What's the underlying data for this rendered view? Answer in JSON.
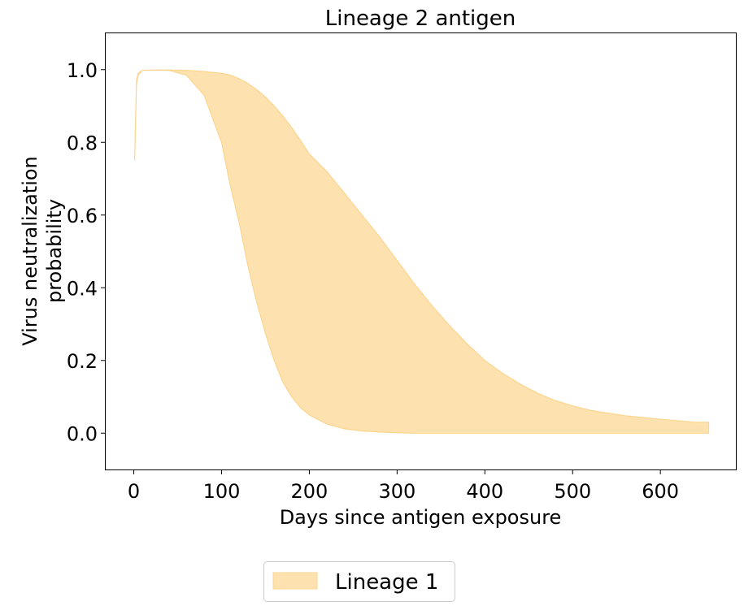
{
  "chart_data": {
    "type": "area",
    "title": "Lineage 2 antigen",
    "xlabel": "Days since antigen exposure",
    "ylabel_lines": [
      "Virus neutralization",
      "probability"
    ],
    "xlim": [
      -32,
      686
    ],
    "ylim": [
      -0.1,
      1.1
    ],
    "xticks": [
      0,
      100,
      200,
      300,
      400,
      500,
      600
    ],
    "xtick_labels": [
      "0",
      "100",
      "200",
      "300",
      "400",
      "500",
      "600"
    ],
    "yticks": [
      0.0,
      0.2,
      0.4,
      0.6,
      0.8,
      1.0
    ],
    "ytick_labels": [
      "0.0",
      "0.2",
      "0.4",
      "0.6",
      "0.8",
      "1.0"
    ],
    "grid": false,
    "legend_position": "bottom-center-outside",
    "series": [
      {
        "name": "Lineage 1",
        "color": "#fde2b0",
        "edge_color": "#fcd58f",
        "x": [
          1,
          3,
          5,
          10,
          20,
          40,
          60,
          80,
          100,
          110,
          120,
          130,
          140,
          150,
          160,
          170,
          180,
          190,
          200,
          220,
          240,
          260,
          280,
          300,
          320,
          340,
          360,
          380,
          400,
          420,
          440,
          460,
          480,
          500,
          520,
          540,
          560,
          580,
          600,
          620,
          640,
          655
        ],
        "upper": [
          0.75,
          0.97,
          0.99,
          0.998,
          0.999,
          0.999,
          0.998,
          0.995,
          0.99,
          0.985,
          0.975,
          0.962,
          0.945,
          0.925,
          0.9,
          0.872,
          0.84,
          0.805,
          0.768,
          0.72,
          0.66,
          0.6,
          0.54,
          0.475,
          0.41,
          0.35,
          0.295,
          0.245,
          0.2,
          0.165,
          0.135,
          0.11,
          0.09,
          0.075,
          0.063,
          0.055,
          0.048,
          0.043,
          0.038,
          0.034,
          0.03,
          0.03
        ],
        "lower": [
          0.75,
          0.96,
          0.985,
          0.998,
          0.999,
          0.998,
          0.985,
          0.93,
          0.8,
          0.68,
          0.58,
          0.46,
          0.36,
          0.275,
          0.2,
          0.14,
          0.1,
          0.07,
          0.05,
          0.025,
          0.012,
          0.006,
          0.003,
          0.001,
          0.0,
          0.0,
          0.0,
          0.0,
          0.0,
          0.0,
          0.0,
          0.0,
          0.0,
          0.0,
          0.0,
          0.0,
          0.0,
          0.0,
          0.0,
          0.0,
          0.0,
          0.0
        ]
      }
    ]
  }
}
